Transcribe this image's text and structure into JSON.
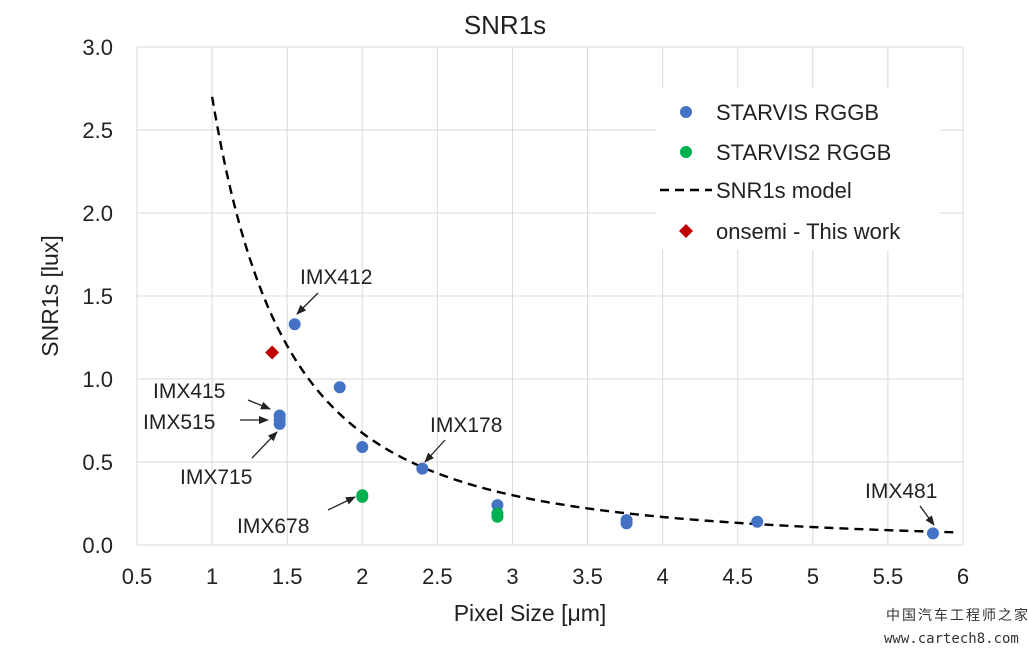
{
  "chart_data": {
    "type": "scatter",
    "title": "SNR1s",
    "xlabel": "Pixel Size [μm]",
    "ylabel": "SNR1s [lux]",
    "xlim": [
      0.5,
      6
    ],
    "ylim": [
      0,
      3
    ],
    "x_ticks": [
      "0.5",
      "1",
      "1.5",
      "2",
      "2.5",
      "3",
      "3.5",
      "4",
      "4.5",
      "5",
      "5.5",
      "6"
    ],
    "y_ticks": [
      "0.0",
      "0.5",
      "1.0",
      "1.5",
      "2.0",
      "2.5",
      "3.0"
    ],
    "grid": true,
    "legend_position": "top-right",
    "series": [
      {
        "name": "STARVIS RGGB",
        "color": "#4472C4",
        "marker": "circle",
        "points": [
          {
            "x": 1.55,
            "y": 1.33
          },
          {
            "x": 1.85,
            "y": 0.95
          },
          {
            "x": 1.45,
            "y": 0.78
          },
          {
            "x": 1.45,
            "y": 0.755
          },
          {
            "x": 1.45,
            "y": 0.73
          },
          {
            "x": 2.0,
            "y": 0.59
          },
          {
            "x": 2.4,
            "y": 0.46
          },
          {
            "x": 2.9,
            "y": 0.24
          },
          {
            "x": 3.76,
            "y": 0.15
          },
          {
            "x": 3.76,
            "y": 0.13
          },
          {
            "x": 4.63,
            "y": 0.14
          },
          {
            "x": 5.8,
            "y": 0.07
          }
        ]
      },
      {
        "name": "STARVIS2 RGGB",
        "color": "#00B050",
        "marker": "circle",
        "points": [
          {
            "x": 2.0,
            "y": 0.3
          },
          {
            "x": 2.0,
            "y": 0.29
          },
          {
            "x": 2.9,
            "y": 0.19
          },
          {
            "x": 2.9,
            "y": 0.17
          }
        ]
      },
      {
        "name": "SNR1s model",
        "color": "#000000",
        "style": "dashed",
        "model": "y = 2.7 / x^2",
        "x_range": [
          1,
          5.95
        ]
      },
      {
        "name": "onsemi - This work",
        "color": "#C00000",
        "marker": "diamond",
        "points": [
          {
            "x": 1.4,
            "y": 1.16
          }
        ]
      }
    ],
    "annotations": [
      {
        "text": "IMX412",
        "target_x": 1.55,
        "target_y": 1.33
      },
      {
        "text": "IMX415",
        "target_x": 1.45,
        "target_y": 0.78
      },
      {
        "text": "IMX515",
        "target_x": 1.45,
        "target_y": 0.755
      },
      {
        "text": "IMX715",
        "target_x": 1.45,
        "target_y": 0.73
      },
      {
        "text": "IMX178",
        "target_x": 2.4,
        "target_y": 0.46
      },
      {
        "text": "IMX678",
        "target_x": 2.0,
        "target_y": 0.3
      },
      {
        "text": "IMX481",
        "target_x": 5.8,
        "target_y": 0.07
      }
    ]
  },
  "watermark": {
    "cn": "中国汽车工程师之家",
    "url": "www.cartech8.com"
  }
}
